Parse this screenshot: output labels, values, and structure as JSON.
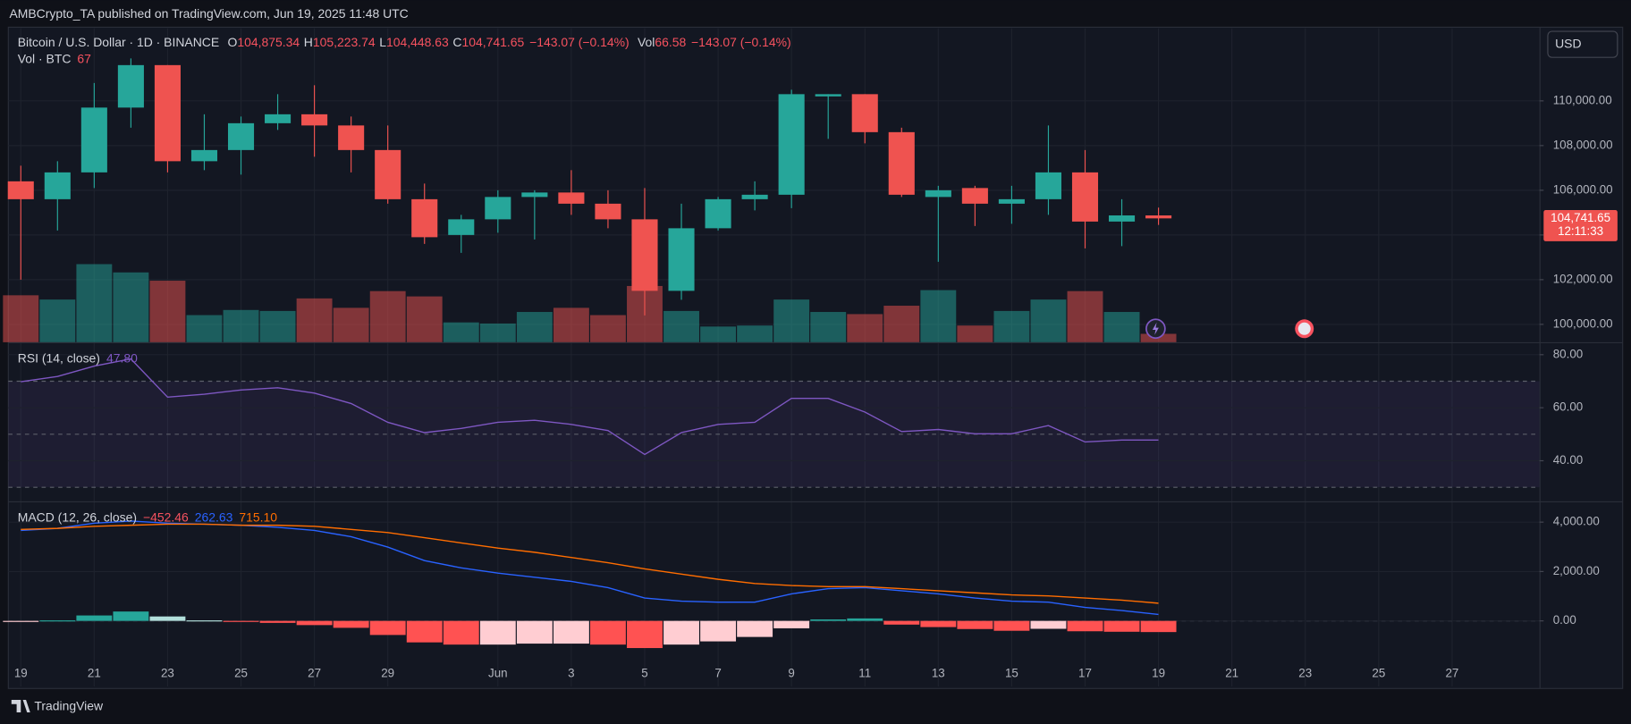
{
  "header": {
    "publisher": "AMBCrypto_TA published on TradingView.com, Jun 19, 2025 11:48 UTC"
  },
  "footer": {
    "brand": "TradingView"
  },
  "chart_data": [
    {
      "type": "candlestick",
      "title": "Bitcoin / U.S. Dollar · 1D · BINANCE",
      "legend": [
        {
          "key": "O",
          "text": "104,875.34"
        },
        {
          "key": "H",
          "text": "105,223.74"
        },
        {
          "key": "L",
          "text": "104,448.63"
        },
        {
          "key": "C",
          "text": "104,741.65"
        }
      ],
      "change": "−143.07 (−0.14%)",
      "volume_key": "Vol",
      "volume_text": "66.58",
      "volume_change": "−143.07 (−0.14%)",
      "currency": "USD",
      "last_price_label": "104,741.65",
      "countdown": "12:11:33",
      "up_color": "#26a69a",
      "down_color": "#ef5350",
      "open": [
        106400,
        105600,
        106800,
        109700,
        111600,
        107300,
        107800,
        109000,
        109400,
        108900,
        107800,
        105600,
        104000,
        104700,
        105700,
        105900,
        105400,
        104700,
        101500,
        104300,
        105600,
        105800,
        110200,
        110300,
        108600,
        105700,
        106100,
        105400,
        105600,
        106800,
        104600,
        104875.34,
        null,
        null,
        null,
        null,
        null,
        null,
        null,
        null
      ],
      "high": [
        107100,
        107300,
        110800,
        111900,
        111600,
        109400,
        109300,
        110300,
        110700,
        109300,
        108900,
        106300,
        104900,
        106000,
        106000,
        106900,
        106000,
        106100,
        105400,
        105700,
        106400,
        110500,
        110300,
        110300,
        108800,
        106200,
        106200,
        106200,
        108900,
        107800,
        105600,
        105223.74,
        null,
        null,
        null,
        null,
        null,
        null,
        null,
        null
      ],
      "low": [
        102000,
        104200,
        106100,
        108800,
        106800,
        106900,
        106700,
        108700,
        107500,
        106800,
        105400,
        103600,
        103200,
        104100,
        103800,
        104900,
        104300,
        100400,
        101100,
        104200,
        105100,
        105200,
        108300,
        108100,
        105700,
        102800,
        104400,
        104500,
        104900,
        103400,
        103500,
        104448.63,
        null,
        null,
        null,
        null,
        null,
        null,
        null,
        null
      ],
      "close": [
        105600,
        106800,
        109700,
        111600,
        107300,
        107800,
        109000,
        109400,
        108900,
        107800,
        105600,
        103900,
        104700,
        105700,
        105900,
        105400,
        104700,
        101500,
        104300,
        105600,
        105800,
        110300,
        110300,
        108600,
        105800,
        106000,
        105400,
        105600,
        106800,
        104600,
        104875,
        104741.65,
        null,
        null,
        null,
        null,
        null,
        null,
        null,
        null
      ],
      "volume": {
        "name": "Vol · BTC",
        "values": [
          374,
          340,
          622,
          556,
          490,
          216,
          257,
          249,
          349,
          274,
          407,
          365,
          158,
          149,
          241,
          274,
          216,
          448,
          249,
          125,
          133,
          340,
          241,
          224,
          291,
          415,
          133,
          249,
          340,
          407,
          241,
          67,
          null,
          null,
          null,
          null,
          null,
          null,
          null,
          null
        ]
      },
      "volume_lim": [
        0,
        2500
      ],
      "ylim": [
        99200,
        113250
      ],
      "yticks": [
        {
          "value": 100000,
          "label": "100,000.00"
        },
        {
          "value": 102000,
          "label": "102,000.00"
        },
        {
          "value": 104000,
          "label": "104,000.00"
        },
        {
          "value": 106000,
          "label": "106,000.00"
        },
        {
          "value": 108000,
          "label": "108,000.00"
        },
        {
          "value": 110000,
          "label": "110,000.00"
        }
      ],
      "grid": true
    },
    {
      "type": "line",
      "title": "RSI (14, close)",
      "series": [
        {
          "color": "#7e57c2",
          "values": [
            69.8,
            71.8,
            75.7,
            78.4,
            64,
            65.1,
            66.7,
            67.5,
            65.5,
            61.6,
            54.5,
            50.6,
            52.2,
            54.5,
            55.3,
            53.7,
            51.4,
            42.4,
            50.6,
            53.7,
            54.5,
            63.5,
            63.5,
            58.4,
            51,
            51.8,
            50.2,
            50.2,
            53.3,
            47.1,
            47.8,
            47.8,
            null,
            null,
            null,
            null,
            null,
            null,
            null,
            null
          ],
          "value_labels": [
            null,
            null,
            null,
            null,
            null,
            null,
            null,
            null,
            null,
            null,
            null,
            null,
            null,
            null,
            null,
            null,
            null,
            null,
            null,
            null,
            null,
            null,
            null,
            null,
            null,
            null,
            null,
            null,
            null,
            null,
            null,
            "47.80",
            null,
            null,
            null,
            null,
            null,
            null,
            null,
            null
          ]
        }
      ],
      "levels": [
        70,
        50,
        30
      ],
      "band_color": "#7e57c2",
      "ylim": [
        24.7,
        84.3
      ],
      "yticks": [
        {
          "value": 40,
          "label": "40.00"
        },
        {
          "value": 60,
          "label": "60.00"
        },
        {
          "value": 80,
          "label": "80.00"
        }
      ],
      "grid": true
    },
    {
      "type": "macd",
      "title": "MACD (12, 26, close)",
      "categories": [
        "19",
        null,
        "21",
        null,
        "23",
        null,
        "25",
        null,
        "27",
        null,
        "29",
        null,
        null,
        "Jun",
        null,
        "3",
        null,
        "5",
        null,
        "7",
        null,
        "9",
        null,
        "11",
        null,
        "13",
        null,
        "15",
        null,
        "17",
        null,
        "19",
        null,
        "21",
        null,
        "23",
        null,
        "25",
        null,
        "27"
      ],
      "histogram": {
        "colors": [
          "#26a69a",
          "#b2dfdb",
          "#ffcdd2",
          "#ff5252"
        ],
        "label_color": "#f7525f",
        "values": [
          -10,
          20,
          220,
          380,
          180,
          20,
          -40,
          -80,
          -170,
          -280,
          -570,
          -870,
          -960,
          -960,
          -920,
          -920,
          -960,
          -1100,
          -960,
          -830,
          -650,
          -300,
          60,
          100,
          -150,
          -250,
          -330,
          -400,
          -320,
          -420,
          -440,
          -452.46,
          null,
          null,
          null,
          null,
          null,
          null,
          null,
          null
        ],
        "value_labels": [
          null,
          null,
          null,
          null,
          null,
          null,
          null,
          null,
          null,
          null,
          null,
          null,
          null,
          null,
          null,
          null,
          null,
          null,
          null,
          null,
          null,
          null,
          null,
          null,
          null,
          null,
          null,
          null,
          null,
          null,
          null,
          "−452.46",
          null,
          null,
          null,
          null,
          null,
          null,
          null,
          null
        ]
      },
      "series": [
        {
          "color": "#2962ff",
          "values": [
            3663,
            3747,
            3958,
            4042,
            3958,
            3916,
            3874,
            3789,
            3663,
            3411,
            2989,
            2442,
            2147,
            1937,
            1768,
            1600,
            1347,
            926,
            800,
            758,
            758,
            1095,
            1305,
            1347,
            1221,
            1095,
            926,
            800,
            758,
            547,
            421,
            262.63,
            null,
            null,
            null,
            null,
            null,
            null,
            null,
            null
          ],
          "value_labels": [
            null,
            null,
            null,
            null,
            null,
            null,
            null,
            null,
            null,
            null,
            null,
            null,
            null,
            null,
            null,
            null,
            null,
            null,
            null,
            null,
            null,
            null,
            null,
            null,
            null,
            null,
            null,
            null,
            null,
            null,
            null,
            "262.63",
            null,
            null,
            null,
            null,
            null,
            null,
            null,
            null
          ]
        },
        {
          "color": "#ff6d00",
          "values": [
            3705,
            3747,
            3832,
            3874,
            3916,
            3916,
            3874,
            3874,
            3832,
            3705,
            3579,
            3368,
            3158,
            2947,
            2779,
            2568,
            2358,
            2105,
            1895,
            1684,
            1516,
            1432,
            1389,
            1389,
            1305,
            1221,
            1137,
            1053,
            1011,
            926,
            842,
            715.1,
            null,
            null,
            null,
            null,
            null,
            null,
            null,
            null
          ],
          "value_labels": [
            null,
            null,
            null,
            null,
            null,
            null,
            null,
            null,
            null,
            null,
            null,
            null,
            null,
            null,
            null,
            null,
            null,
            null,
            null,
            null,
            null,
            null,
            null,
            null,
            null,
            null,
            null,
            null,
            null,
            null,
            null,
            "715.10",
            null,
            null,
            null,
            null,
            null,
            null,
            null,
            null
          ]
        }
      ],
      "levels": [
        0
      ],
      "ylim": [
        -2653,
        4758
      ],
      "yticks": [
        {
          "value": 0,
          "label": "0.00"
        },
        {
          "value": 2000,
          "label": "2,000.00"
        },
        {
          "value": 4000,
          "label": "4,000.00"
        }
      ],
      "grid": true
    }
  ]
}
